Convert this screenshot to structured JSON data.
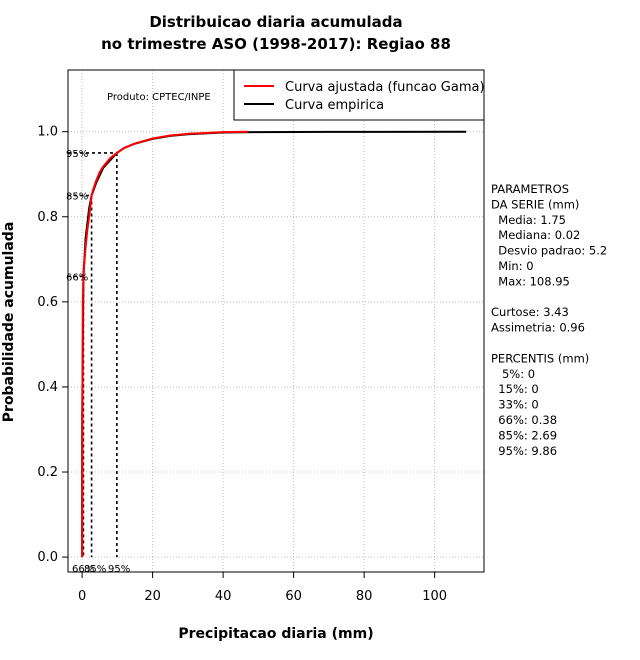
{
  "chart_data": {
    "type": "line",
    "title": [
      "Distribuicao diaria acumulada",
      "no trimestre ASO (1998-2017): Regiao 88"
    ],
    "xlabel": "Precipitacao diaria (mm)",
    "ylabel": "Probabilidade acumulada",
    "xlim": [
      -4,
      114
    ],
    "ylim": [
      -0.035,
      1.145
    ],
    "xticks": [
      0,
      20,
      40,
      60,
      80,
      100
    ],
    "yticks": [
      0.0,
      0.2,
      0.4,
      0.6,
      0.8,
      1.0
    ],
    "ytick_labels": [
      "0.0",
      "0.2",
      "0.4",
      "0.6",
      "0.8",
      "1.0"
    ],
    "grid": true,
    "legend_position": "top-right",
    "credit": "Produto: CPTEC/INPE",
    "series": [
      {
        "name": "Curva ajustada (funcao Gama)",
        "color": "#ff0000",
        "x": [
          0,
          0.2,
          0.5,
          1,
          1.5,
          2,
          2.69,
          3,
          4,
          5,
          6,
          8,
          9.86,
          12,
          15,
          20,
          25,
          30,
          35,
          40,
          47
        ],
        "y": [
          0.0,
          0.6,
          0.68,
          0.73,
          0.77,
          0.8,
          0.85,
          0.86,
          0.885,
          0.905,
          0.918,
          0.938,
          0.95,
          0.962,
          0.972,
          0.984,
          0.991,
          0.995,
          0.997,
          0.999,
          1.0
        ]
      },
      {
        "name": "Curva empirica",
        "color": "#000000",
        "x": [
          0,
          0.02,
          0.38,
          1,
          2,
          2.69,
          4,
          6,
          9.86,
          12,
          15,
          20,
          25,
          30,
          40,
          50,
          70,
          108.95
        ],
        "y": [
          0.0,
          0.33,
          0.66,
          0.75,
          0.82,
          0.85,
          0.88,
          0.915,
          0.95,
          0.962,
          0.972,
          0.983,
          0.99,
          0.994,
          0.998,
          0.999,
          0.9995,
          1.0
        ]
      }
    ],
    "percentile_markers": [
      {
        "label": "66%",
        "x": 0.38,
        "y": 0.66
      },
      {
        "label": "85%",
        "x": 2.69,
        "y": 0.85
      },
      {
        "label": "95%",
        "x": 9.86,
        "y": 0.95
      }
    ]
  },
  "stats_panel": {
    "lines": [
      "PARAMETROS",
      "DA SERIE (mm)",
      "  Media: 1.75",
      "  Mediana: 0.02",
      "  Desvio padrao: 5.2",
      "  Min: 0",
      "  Max: 108.95",
      "",
      "Curtose: 3.43",
      "Assimetria: 0.96",
      "",
      "PERCENTIS (mm)",
      "   5%: 0",
      "  15%: 0",
      "  33%: 0",
      "  66%: 0.38",
      "  85%: 2.69",
      "  95%: 9.86"
    ]
  }
}
